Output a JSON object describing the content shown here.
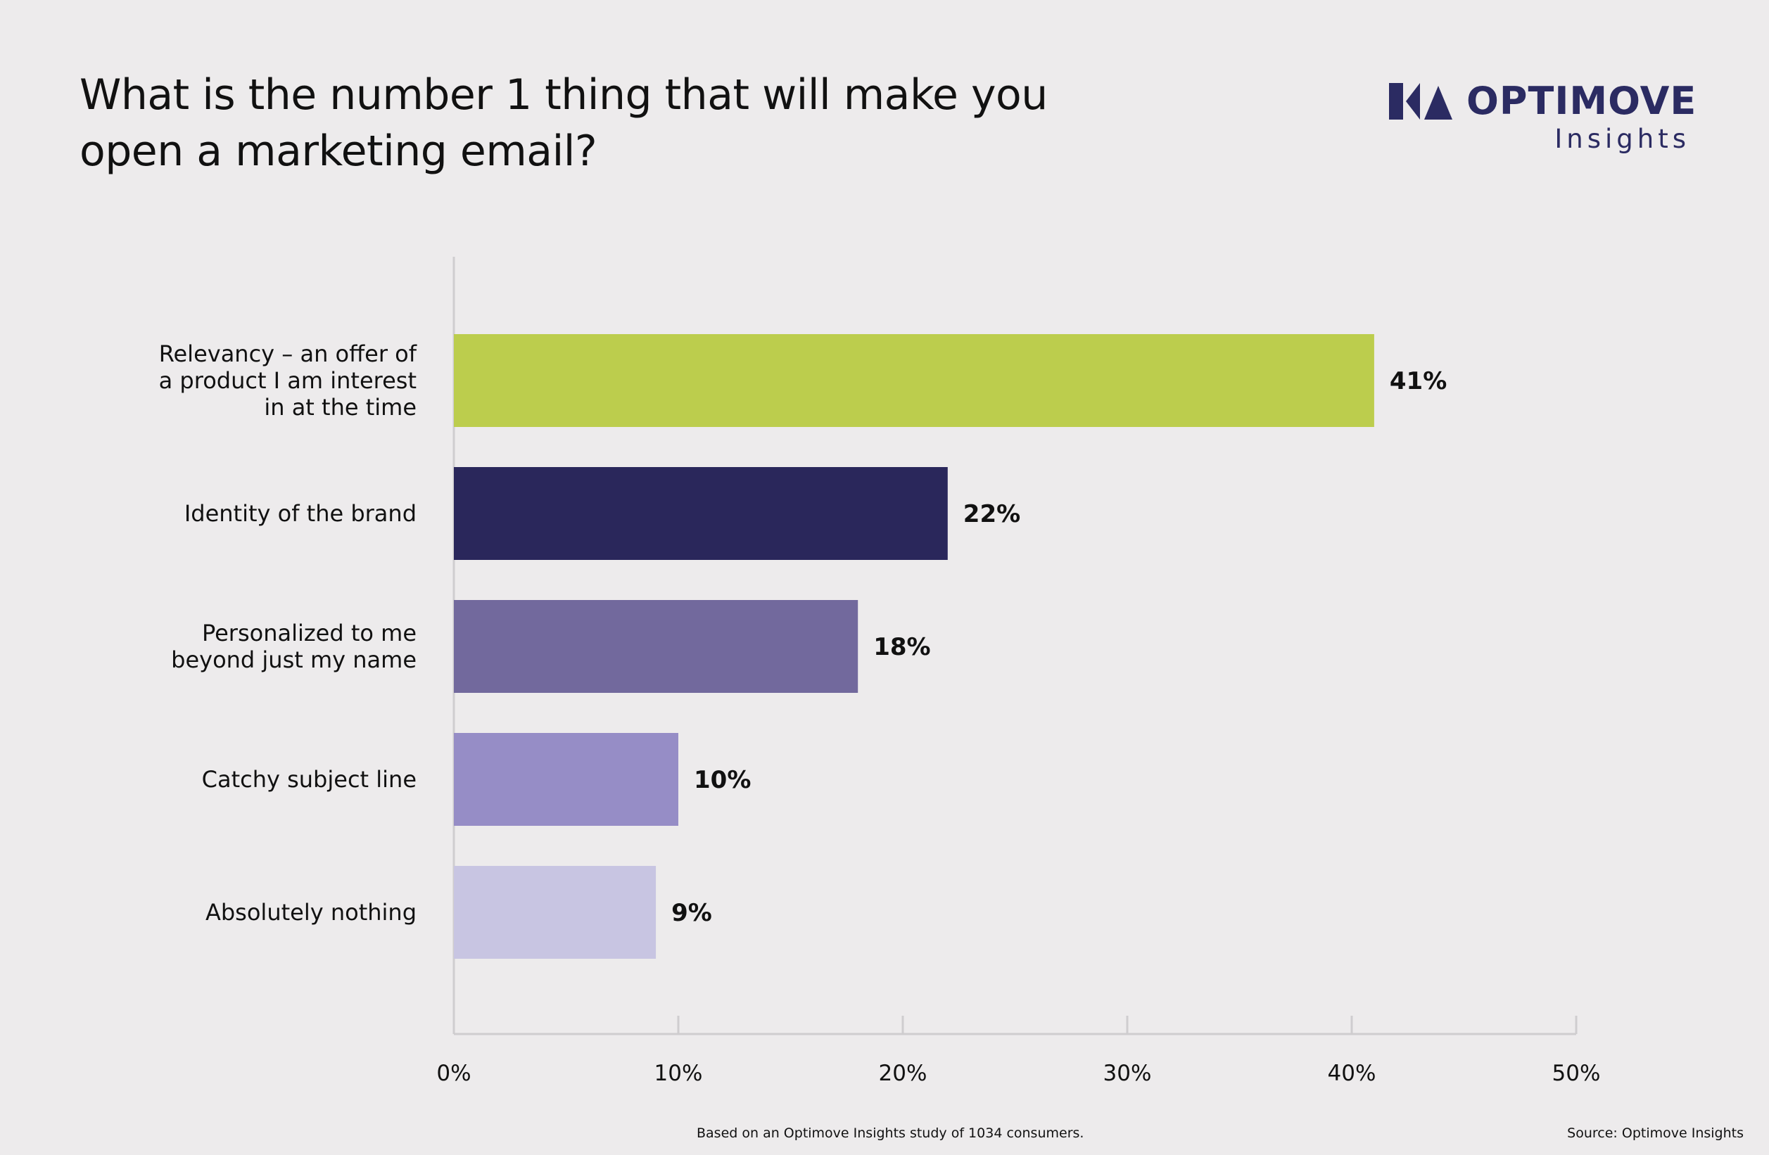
{
  "logo": {
    "wordmark": "OPTIMOVE",
    "tagline": "Insights",
    "color": "#2b2b62"
  },
  "footer": {
    "note": "Based on an Optimove Insights study of 1034 consumers.",
    "source": "Source: Optimove Insights"
  },
  "chart_data": {
    "type": "bar",
    "orientation": "horizontal",
    "title": "What is the number 1 thing that will make you open a marketing email?",
    "categories": [
      [
        "Relevancy – an offer of",
        "a product I am interest",
        "in at the time"
      ],
      [
        "Identity of the brand"
      ],
      [
        "Personalized to me",
        "beyond just my name"
      ],
      [
        "Catchy subject line"
      ],
      [
        "Absolutely nothing"
      ]
    ],
    "values": [
      41,
      22,
      18,
      10,
      9
    ],
    "value_labels": [
      "41%",
      "22%",
      "18%",
      "10%",
      "9%"
    ],
    "colors": [
      "#bccd4d",
      "#2a275b",
      "#72699d",
      "#968dc6",
      "#c8c5e2"
    ],
    "xlim": [
      0,
      50
    ],
    "xticks": [
      0,
      10,
      20,
      30,
      40,
      50
    ],
    "xtick_labels": [
      "0%",
      "10%",
      "20%",
      "30%",
      "40%",
      "50%"
    ],
    "grid": false,
    "legend": "none"
  }
}
